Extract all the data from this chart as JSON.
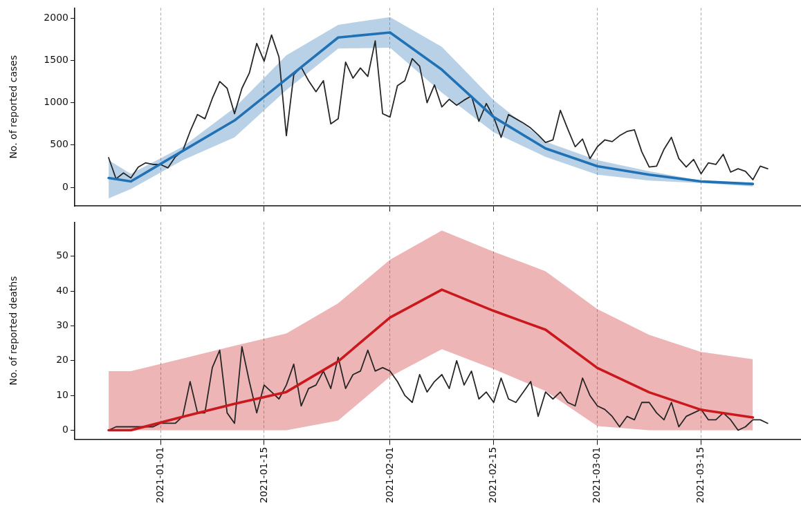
{
  "chart_data": [
    {
      "type": "line",
      "ylabel": "No. of reported cases",
      "xlim": [
        "2020-12-20T10:00",
        "2021-03-28T12:00"
      ],
      "xticks": [
        "2021-01-01",
        "2021-01-15",
        "2021-02-01",
        "2021-02-15",
        "2021-03-01",
        "2021-03-15"
      ],
      "ylim": [
        -220,
        2120
      ],
      "yticks": [
        0,
        500,
        1000,
        1500,
        2000
      ],
      "grid": "x",
      "legend": false,
      "tick_labels": "y",
      "marker": "none",
      "line_style": "solid",
      "series": [
        {
          "color": "#262626",
          "x": [
            "2020-12-25",
            "2020-12-26",
            "2020-12-27",
            "2020-12-28",
            "2020-12-29",
            "2020-12-30",
            "2020-12-31",
            "2021-01-01",
            "2021-01-02",
            "2021-01-03",
            "2021-01-04",
            "2021-01-05",
            "2021-01-06",
            "2021-01-07",
            "2021-01-08",
            "2021-01-09",
            "2021-01-10",
            "2021-01-11",
            "2021-01-12",
            "2021-01-13",
            "2021-01-14",
            "2021-01-15",
            "2021-01-16",
            "2021-01-17",
            "2021-01-18",
            "2021-01-19",
            "2021-01-20",
            "2021-01-21",
            "2021-01-22",
            "2021-01-23",
            "2021-01-24",
            "2021-01-25",
            "2021-01-26",
            "2021-01-27",
            "2021-01-28",
            "2021-01-29",
            "2021-01-30",
            "2021-01-31",
            "2021-02-01",
            "2021-02-02",
            "2021-02-03",
            "2021-02-04",
            "2021-02-05",
            "2021-02-06",
            "2021-02-07",
            "2021-02-08",
            "2021-02-09",
            "2021-02-10",
            "2021-02-11",
            "2021-02-12",
            "2021-02-13",
            "2021-02-14",
            "2021-02-15",
            "2021-02-16",
            "2021-02-17",
            "2021-02-18",
            "2021-02-19",
            "2021-02-20",
            "2021-02-21",
            "2021-02-22",
            "2021-02-23",
            "2021-02-24",
            "2021-02-25",
            "2021-02-26",
            "2021-02-27",
            "2021-02-28",
            "2021-03-01",
            "2021-03-02",
            "2021-03-03",
            "2021-03-04",
            "2021-03-05",
            "2021-03-06",
            "2021-03-07",
            "2021-03-08",
            "2021-03-09",
            "2021-03-10",
            "2021-03-11",
            "2021-03-12",
            "2021-03-13",
            "2021-03-14",
            "2021-03-15",
            "2021-03-16",
            "2021-03-17",
            "2021-03-18",
            "2021-03-19",
            "2021-03-20",
            "2021-03-21",
            "2021-03-22",
            "2021-03-23",
            "2021-03-24"
          ],
          "values": [
            350,
            100,
            170,
            110,
            240,
            290,
            270,
            270,
            230,
            360,
            430,
            660,
            860,
            810,
            1050,
            1250,
            1170,
            870,
            1170,
            1350,
            1700,
            1490,
            1800,
            1540,
            610,
            1330,
            1420,
            1260,
            1130,
            1260,
            750,
            810,
            1480,
            1290,
            1410,
            1310,
            1730,
            870,
            830,
            1200,
            1260,
            1520,
            1430,
            1000,
            1210,
            950,
            1040,
            970,
            1030,
            1080,
            780,
            990,
            830,
            590,
            860,
            810,
            760,
            700,
            620,
            530,
            560,
            910,
            690,
            480,
            570,
            340,
            480,
            560,
            540,
            610,
            660,
            680,
            420,
            240,
            250,
            450,
            590,
            340,
            240,
            330,
            160,
            290,
            270,
            390,
            180,
            220,
            190,
            90,
            250,
            220
          ]
        },
        {
          "color": "#2171b5",
          "x": [
            "2020-12-25",
            "2020-12-28",
            "2021-01-04",
            "2021-01-11",
            "2021-01-18",
            "2021-01-25",
            "2021-02-01",
            "2021-02-08",
            "2021-02-15",
            "2021-02-22",
            "2021-03-01",
            "2021-03-08",
            "2021-03-15",
            "2021-03-22"
          ],
          "values": [
            110,
            70,
            430,
            790,
            1280,
            1770,
            1830,
            1390,
            830,
            460,
            250,
            150,
            70,
            40
          ],
          "lower": [
            -130,
            -20,
            320,
            590,
            1150,
            1640,
            1650,
            1120,
            650,
            360,
            150,
            80,
            50,
            10
          ],
          "upper": [
            320,
            160,
            480,
            940,
            1560,
            1920,
            2010,
            1660,
            1030,
            540,
            320,
            190,
            80,
            50
          ]
        }
      ]
    },
    {
      "type": "line",
      "ylabel": "No. of reported deaths",
      "xlim": [
        "2020-12-20T10:00",
        "2021-03-28T12:00"
      ],
      "xticks": [
        "2021-01-01",
        "2021-01-15",
        "2021-02-01",
        "2021-02-15",
        "2021-03-01",
        "2021-03-15"
      ],
      "ylim": [
        -2.6,
        59.8
      ],
      "yticks": [
        0,
        10,
        20,
        30,
        40,
        50
      ],
      "grid": "x",
      "legend": false,
      "marker": "none",
      "line_style": "solid",
      "series": [
        {
          "color": "#262626",
          "x": [
            "2020-12-25",
            "2020-12-26",
            "2020-12-27",
            "2020-12-28",
            "2020-12-29",
            "2020-12-30",
            "2020-12-31",
            "2021-01-01",
            "2021-01-02",
            "2021-01-03",
            "2021-01-04",
            "2021-01-05",
            "2021-01-06",
            "2021-01-07",
            "2021-01-08",
            "2021-01-09",
            "2021-01-10",
            "2021-01-11",
            "2021-01-12",
            "2021-01-13",
            "2021-01-14",
            "2021-01-15",
            "2021-01-16",
            "2021-01-17",
            "2021-01-18",
            "2021-01-19",
            "2021-01-20",
            "2021-01-21",
            "2021-01-22",
            "2021-01-23",
            "2021-01-24",
            "2021-01-25",
            "2021-01-26",
            "2021-01-27",
            "2021-01-28",
            "2021-01-29",
            "2021-01-30",
            "2021-01-31",
            "2021-02-01",
            "2021-02-02",
            "2021-02-03",
            "2021-02-04",
            "2021-02-05",
            "2021-02-06",
            "2021-02-07",
            "2021-02-08",
            "2021-02-09",
            "2021-02-10",
            "2021-02-11",
            "2021-02-12",
            "2021-02-13",
            "2021-02-14",
            "2021-02-15",
            "2021-02-16",
            "2021-02-17",
            "2021-02-18",
            "2021-02-19",
            "2021-02-20",
            "2021-02-21",
            "2021-02-22",
            "2021-02-23",
            "2021-02-24",
            "2021-02-25",
            "2021-02-26",
            "2021-02-27",
            "2021-02-28",
            "2021-03-01",
            "2021-03-02",
            "2021-03-03",
            "2021-03-04",
            "2021-03-05",
            "2021-03-06",
            "2021-03-07",
            "2021-03-08",
            "2021-03-09",
            "2021-03-10",
            "2021-03-11",
            "2021-03-12",
            "2021-03-13",
            "2021-03-14",
            "2021-03-15",
            "2021-03-16",
            "2021-03-17",
            "2021-03-18",
            "2021-03-19",
            "2021-03-20",
            "2021-03-21",
            "2021-03-22",
            "2021-03-23",
            "2021-03-24"
          ],
          "values": [
            0,
            1,
            1,
            1,
            1,
            1,
            1,
            2,
            2,
            2,
            4,
            14,
            5,
            5,
            18,
            23,
            5,
            2,
            24,
            14,
            5,
            13,
            11,
            9,
            13,
            19,
            7,
            12,
            13,
            17,
            12,
            21,
            12,
            16,
            17,
            23,
            17,
            18,
            17,
            14,
            10,
            8,
            16,
            11,
            14,
            16,
            12,
            20,
            13,
            17,
            9,
            11,
            8,
            15,
            9,
            8,
            11,
            14,
            4,
            11,
            9,
            11,
            8,
            7,
            15,
            10,
            7,
            6,
            4,
            1,
            4,
            3,
            8,
            8,
            5,
            3,
            8,
            1,
            4,
            5,
            6,
            3,
            3,
            5,
            3,
            0,
            1,
            3,
            3,
            2
          ]
        },
        {
          "color": "#cb181d",
          "x": [
            "2020-12-25",
            "2020-12-28",
            "2021-01-04",
            "2021-01-11",
            "2021-01-18",
            "2021-01-25",
            "2021-02-01",
            "2021-02-08",
            "2021-02-15",
            "2021-02-22",
            "2021-03-01",
            "2021-03-08",
            "2021-03-15",
            "2021-03-22"
          ],
          "values": [
            0,
            0,
            3.9,
            7.6,
            11,
            19.8,
            32.4,
            40.4,
            34.3,
            28.9,
            17.9,
            10.9,
            5.9,
            3.7
          ],
          "lower": [
            0,
            0,
            0,
            0,
            0,
            2.8,
            15.4,
            23.3,
            17.6,
            11.3,
            1.2,
            0,
            0,
            0
          ],
          "upper": [
            17,
            17,
            20.6,
            24.3,
            27.8,
            36.5,
            49,
            57.4,
            51.3,
            45.7,
            34.8,
            27.4,
            22.5,
            20.4
          ]
        }
      ]
    }
  ]
}
